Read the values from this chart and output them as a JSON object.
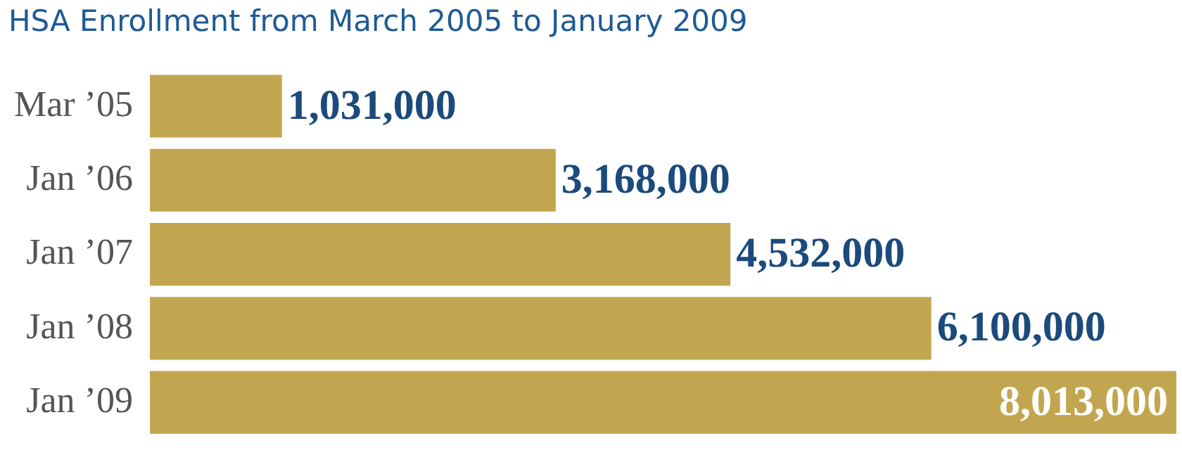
{
  "chart_data": {
    "type": "bar",
    "orientation": "horizontal",
    "title": "HSA Enrollment from March 2005 to January 2009",
    "categories": [
      "Mar ’05",
      "Jan ’06",
      "Jan ’07",
      "Jan ’08",
      "Jan ’09"
    ],
    "values": [
      1031000,
      3168000,
      4532000,
      6100000,
      8013000
    ],
    "value_labels": [
      "1,031,000",
      "3,168,000",
      "4,532,000",
      "6,100,000",
      "8,013,000"
    ],
    "color": "#c2a64f",
    "xlim": [
      0,
      8013000
    ],
    "tick_labels": "y",
    "legend": false
  }
}
